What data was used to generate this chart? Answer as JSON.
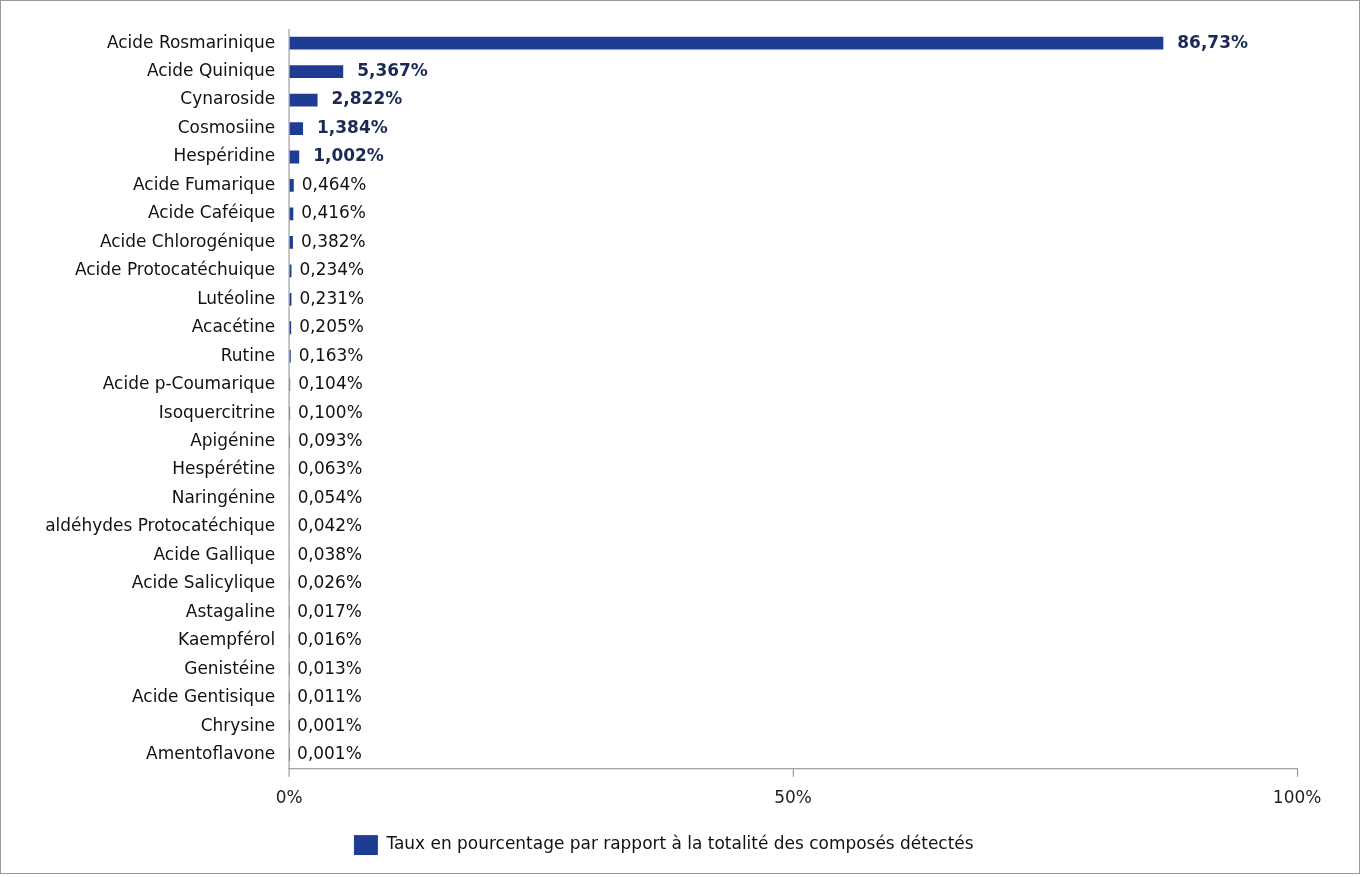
{
  "chart_data": {
    "type": "bar",
    "orientation": "horizontal",
    "categories": [
      "Acide Rosmarinique",
      "Acide Quinique",
      "Cynaroside",
      "Cosmosiine",
      "Hespéridine",
      "Acide Fumarique",
      "Acide Caféique",
      "Acide Chlorogénique",
      "Acide Protocatéchuique",
      "Lutéoline",
      "Acacétine",
      "Rutine",
      "Acide p-Coumarique",
      "Isoquercitrine",
      "Apigénine",
      "Hespérétine",
      "Naringénine",
      "aldéhydes Protocatéchique",
      "Acide Gallique",
      "Acide Salicylique",
      "Astagaline",
      "Kaempférol",
      "Genistéine",
      "Acide Gentisique",
      "Chrysine",
      "Amentoflavone"
    ],
    "series": [
      {
        "name": "Taux en pourcentage par rapport à la totalité des composés détectés",
        "color": "#1f3c94",
        "values": [
          86.73,
          5.367,
          2.822,
          1.384,
          1.002,
          0.464,
          0.416,
          0.382,
          0.234,
          0.231,
          0.205,
          0.163,
          0.104,
          0.1,
          0.093,
          0.063,
          0.054,
          0.042,
          0.038,
          0.026,
          0.017,
          0.016,
          0.013,
          0.011,
          0.001,
          0.001
        ],
        "value_labels": [
          "86,73%",
          "5,367%",
          "2,822%",
          "1,384%",
          "1,002%",
          "0,464%",
          "0,416%",
          "0,382%",
          "0,234%",
          "0,231%",
          "0,205%",
          "0,163%",
          "0,104%",
          "0,100%",
          "0,093%",
          "0,063%",
          "0,054%",
          "0,042%",
          "0,038%",
          "0,026%",
          "0,017%",
          "0,016%",
          "0,013%",
          "0,011%",
          "0,001%",
          "0,001%"
        ]
      }
    ],
    "xlim": [
      0,
      100
    ],
    "xticks": [
      {
        "value": 0,
        "label": "0%"
      },
      {
        "value": 50,
        "label": "50%"
      },
      {
        "value": 100,
        "label": "100%"
      }
    ],
    "grid": false,
    "legend": "bottom"
  }
}
